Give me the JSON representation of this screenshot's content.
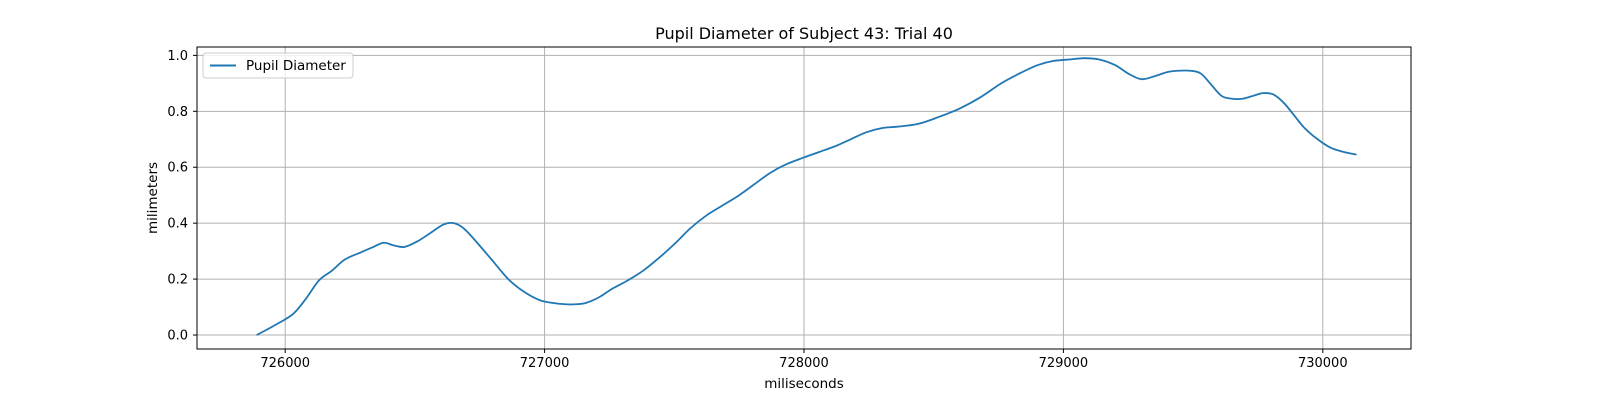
{
  "chart_data": {
    "type": "line",
    "title": "Pupil Diameter of Subject 43: Trial 40",
    "xlabel": "miliseconds",
    "ylabel": "milimeters",
    "xlim": [
      725660,
      730340
    ],
    "ylim": [
      -0.05,
      1.03
    ],
    "xticks": [
      726000,
      727000,
      728000,
      729000,
      730000
    ],
    "xtick_labels": [
      "726000",
      "727000",
      "728000",
      "729000",
      "730000"
    ],
    "yticks": [
      0.0,
      0.2,
      0.4,
      0.6,
      0.8,
      1.0
    ],
    "ytick_labels": [
      "0.0",
      "0.2",
      "0.4",
      "0.6",
      "0.8",
      "1.0"
    ],
    "grid": true,
    "legend_position": "top-left",
    "series": [
      {
        "name": "Pupil Diameter",
        "color": "#1f77b4",
        "x": [
          725890,
          725960,
          726030,
          726080,
          726130,
          726180,
          726230,
          726290,
          726340,
          726380,
          726420,
          726460,
          726510,
          726560,
          726610,
          726650,
          726690,
          726740,
          726800,
          726860,
          726920,
          726980,
          727030,
          727080,
          727120,
          727160,
          727210,
          727260,
          727320,
          727380,
          727440,
          727500,
          727560,
          727620,
          727680,
          727750,
          727810,
          727870,
          727930,
          728000,
          728060,
          728120,
          728180,
          728240,
          728300,
          728360,
          728440,
          728520,
          728600,
          728680,
          728760,
          728830,
          728900,
          728960,
          729020,
          729080,
          729140,
          729200,
          729250,
          729300,
          729350,
          729400,
          729440,
          729490,
          729530,
          729570,
          729610,
          729650,
          729690,
          729730,
          729770,
          729810,
          729850,
          729890,
          729930,
          729980,
          730030,
          730080,
          730130
        ],
        "y": [
          0.0,
          0.035,
          0.075,
          0.13,
          0.195,
          0.23,
          0.27,
          0.295,
          0.315,
          0.33,
          0.32,
          0.315,
          0.335,
          0.365,
          0.395,
          0.4,
          0.38,
          0.33,
          0.265,
          0.2,
          0.155,
          0.125,
          0.115,
          0.11,
          0.11,
          0.115,
          0.135,
          0.165,
          0.195,
          0.23,
          0.275,
          0.325,
          0.38,
          0.425,
          0.46,
          0.5,
          0.54,
          0.58,
          0.61,
          0.635,
          0.655,
          0.675,
          0.7,
          0.725,
          0.74,
          0.745,
          0.755,
          0.78,
          0.81,
          0.85,
          0.9,
          0.935,
          0.965,
          0.98,
          0.985,
          0.99,
          0.985,
          0.965,
          0.935,
          0.915,
          0.925,
          0.94,
          0.945,
          0.945,
          0.935,
          0.895,
          0.855,
          0.845,
          0.845,
          0.855,
          0.865,
          0.86,
          0.83,
          0.785,
          0.74,
          0.7,
          0.67,
          0.655,
          0.645
        ]
      }
    ]
  }
}
